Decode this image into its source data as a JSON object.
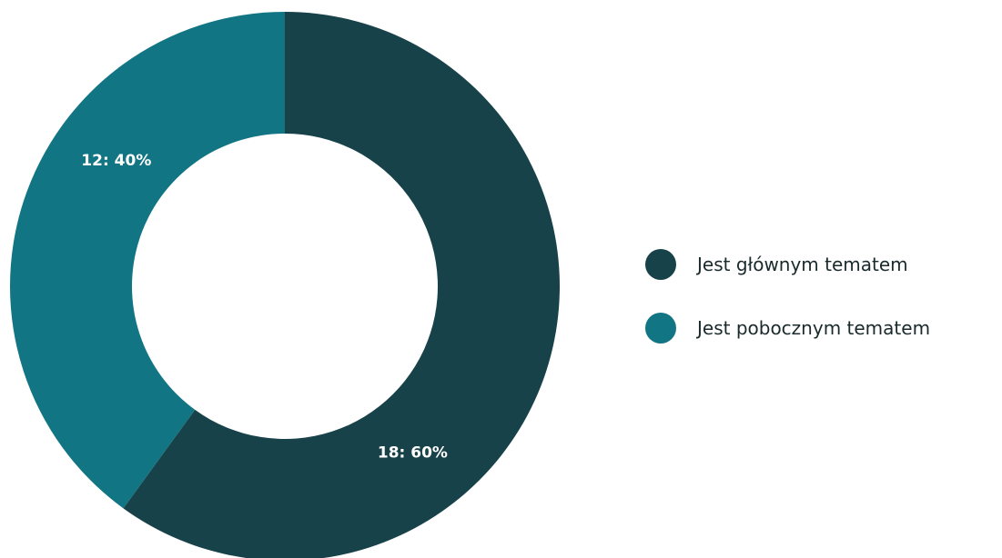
{
  "chart_data": {
    "type": "pie",
    "variant": "donut",
    "title": "",
    "slices": [
      {
        "name": "Jest głównym tematem",
        "value": 18,
        "percent": 60,
        "label": "18: 60%",
        "color": "#184249"
      },
      {
        "name": "Jest pobocznym tematem",
        "value": 12,
        "percent": 40,
        "label": "12: 40%",
        "color": "#127584"
      }
    ],
    "legend_position": "right"
  }
}
